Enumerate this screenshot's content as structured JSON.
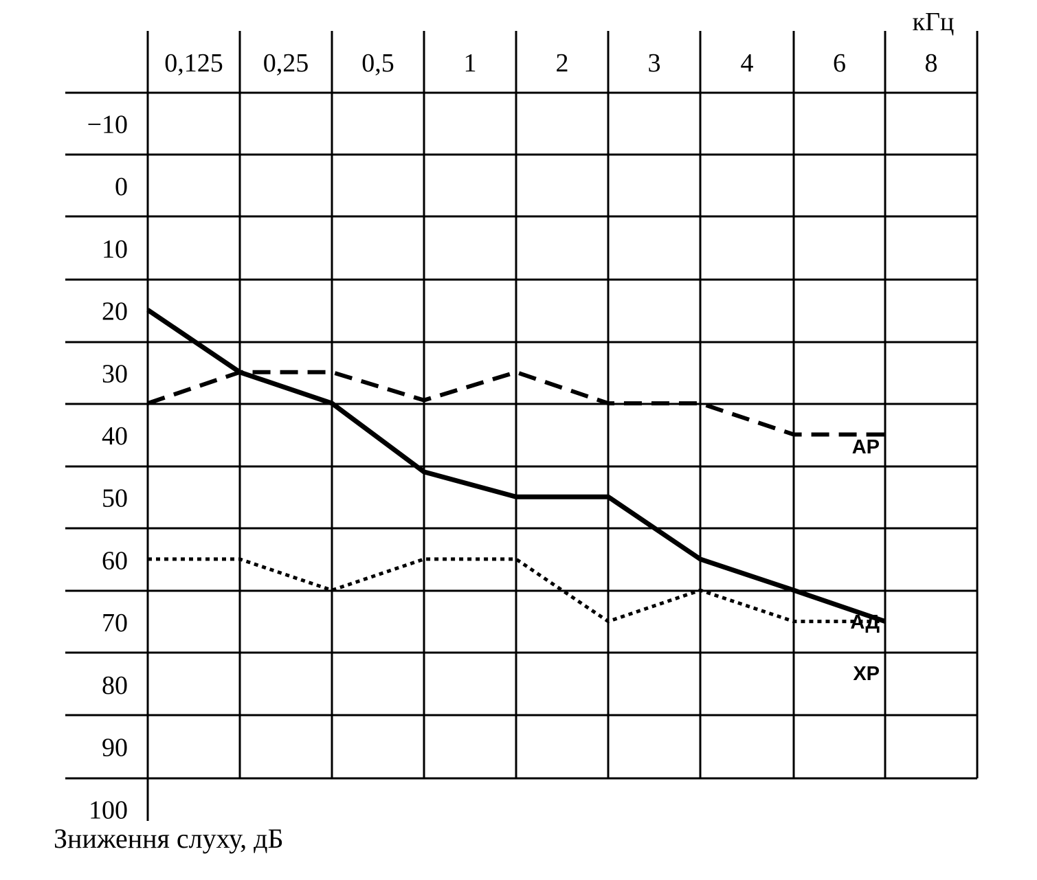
{
  "chart_data": {
    "type": "line",
    "x_unit": "кГц",
    "ylabel": "Зниження слуху,  дБ",
    "categories": [
      "0,125",
      "0,25",
      "0,5",
      "1",
      "2",
      "3",
      "4",
      "6",
      "8"
    ],
    "y_ticks": [
      "−10",
      "0",
      "10",
      "20",
      "30",
      "40",
      "50",
      "60",
      "70",
      "80",
      "90",
      "100"
    ],
    "y_tick_values": [
      -10,
      0,
      10,
      20,
      30,
      40,
      50,
      60,
      70,
      80,
      90,
      100
    ],
    "ylim": [
      -15,
      100
    ],
    "y_inverted": true,
    "grid": true,
    "series": [
      {
        "name": "АД",
        "style": "solid",
        "values": [
          25,
          35,
          40,
          51,
          55,
          55,
          65,
          70,
          75
        ]
      },
      {
        "name": "АР",
        "style": "dashed",
        "values": [
          40,
          35,
          35,
          39.5,
          35,
          40,
          40,
          45,
          45
        ]
      },
      {
        "name": "ХР",
        "style": "dotted",
        "values": [
          65,
          65,
          70,
          65,
          65,
          75,
          70,
          75,
          75
        ]
      }
    ]
  }
}
